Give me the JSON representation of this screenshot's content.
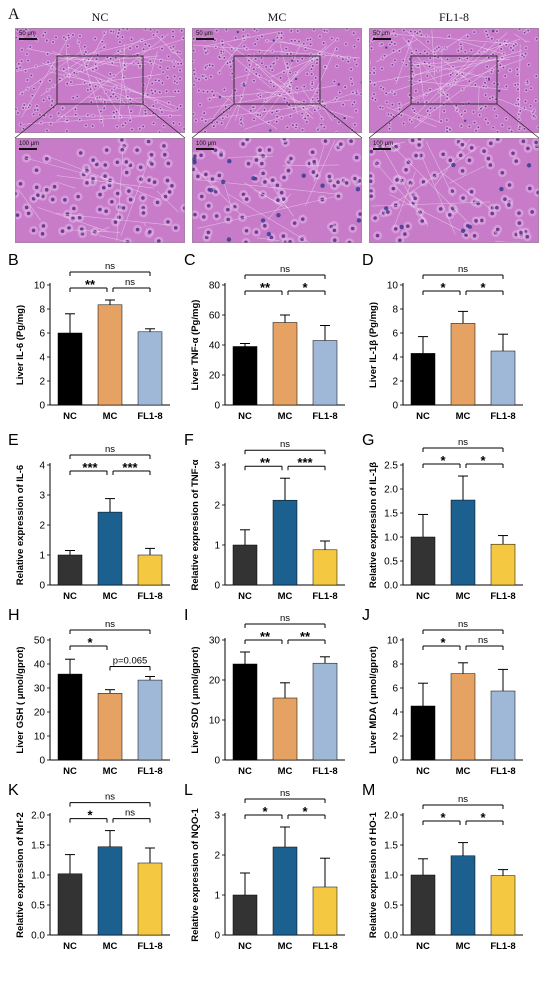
{
  "he_panel": {
    "letter": "A",
    "groups": [
      "NC",
      "MC",
      "FL1-8"
    ],
    "scale_low": "50 μm",
    "scale_high": "100 μm",
    "tissue_color": "#c77bc9",
    "nucleus_color": "#5a2a8a"
  },
  "chart_data": [
    {
      "id": "B",
      "type": "bar",
      "ylabel": "Liver IL-6 (Pg/mg)",
      "categories": [
        "NC",
        "MC",
        "FL1-8"
      ],
      "values": [
        6.0,
        8.35,
        6.1
      ],
      "errors": [
        1.6,
        0.4,
        0.25
      ],
      "ylim": [
        0,
        10
      ],
      "yticks": [
        0,
        2,
        4,
        6,
        8,
        10
      ],
      "colors": [
        "#000000",
        "#e6a263",
        "#9fb8d8"
      ],
      "brackets": [
        {
          "from": 0,
          "to": 1,
          "label": "**",
          "level": 1
        },
        {
          "from": 1,
          "to": 2,
          "label": "ns",
          "level": 1
        },
        {
          "from": 0,
          "to": 2,
          "label": "ns",
          "level": 2
        }
      ]
    },
    {
      "id": "C",
      "type": "bar",
      "ylabel": "Liver TNF-α (Pg/mg)",
      "categories": [
        "NC",
        "MC",
        "FL1-8"
      ],
      "values": [
        39,
        55,
        43
      ],
      "errors": [
        2,
        5,
        10
      ],
      "ylim": [
        0,
        80
      ],
      "yticks": [
        0,
        20,
        40,
        60,
        80
      ],
      "colors": [
        "#000000",
        "#e6a263",
        "#9fb8d8"
      ],
      "brackets": [
        {
          "from": 0,
          "to": 1,
          "label": "**",
          "level": 1
        },
        {
          "from": 1,
          "to": 2,
          "label": "*",
          "level": 1
        },
        {
          "from": 0,
          "to": 2,
          "label": "ns",
          "level": 2
        }
      ]
    },
    {
      "id": "D",
      "type": "bar",
      "ylabel": "Liver IL-1β (Pg/mg)",
      "categories": [
        "NC",
        "MC",
        "FL1-8"
      ],
      "values": [
        4.3,
        6.8,
        4.5
      ],
      "errors": [
        1.4,
        1.0,
        1.4
      ],
      "ylim": [
        0,
        10
      ],
      "yticks": [
        0,
        2,
        4,
        6,
        8,
        10
      ],
      "colors": [
        "#000000",
        "#e6a263",
        "#9fb8d8"
      ],
      "brackets": [
        {
          "from": 0,
          "to": 1,
          "label": "*",
          "level": 1
        },
        {
          "from": 1,
          "to": 2,
          "label": "*",
          "level": 1
        },
        {
          "from": 0,
          "to": 2,
          "label": "ns",
          "level": 2
        }
      ]
    },
    {
      "id": "E",
      "type": "bar",
      "ylabel": "Relative expression of IL-6",
      "categories": [
        "NC",
        "MC",
        "FL1-8"
      ],
      "values": [
        1.0,
        2.43,
        1.0
      ],
      "errors": [
        0.15,
        0.45,
        0.22
      ],
      "ylim": [
        0,
        4
      ],
      "yticks": [
        0,
        1,
        2,
        3,
        4
      ],
      "colors": [
        "#333333",
        "#1c6090",
        "#f5c842"
      ],
      "brackets": [
        {
          "from": 0,
          "to": 1,
          "label": "***",
          "level": 1
        },
        {
          "from": 1,
          "to": 2,
          "label": "***",
          "level": 1
        },
        {
          "from": 0,
          "to": 2,
          "label": "ns",
          "level": 2
        }
      ]
    },
    {
      "id": "F",
      "type": "bar",
      "ylabel": "Relative expression of TNF-α",
      "categories": [
        "NC",
        "MC",
        "FL1-8"
      ],
      "values": [
        1.0,
        2.12,
        0.88
      ],
      "errors": [
        0.38,
        0.55,
        0.22
      ],
      "ylim": [
        0,
        3
      ],
      "yticks": [
        0,
        1,
        2,
        3
      ],
      "colors": [
        "#333333",
        "#1c6090",
        "#f5c842"
      ],
      "brackets": [
        {
          "from": 0,
          "to": 1,
          "label": "**",
          "level": 1
        },
        {
          "from": 1,
          "to": 2,
          "label": "***",
          "level": 1
        },
        {
          "from": 0,
          "to": 2,
          "label": "ns",
          "level": 2
        }
      ]
    },
    {
      "id": "G",
      "type": "bar",
      "ylabel": "Relative expression of IL-1β",
      "categories": [
        "NC",
        "MC",
        "FL1-8"
      ],
      "values": [
        1.0,
        1.77,
        0.85
      ],
      "errors": [
        0.47,
        0.5,
        0.18
      ],
      "ylim": [
        0,
        2.5
      ],
      "yticks": [
        0,
        0.5,
        1.0,
        1.5,
        2.0,
        2.5
      ],
      "decimals": 1,
      "colors": [
        "#333333",
        "#1c6090",
        "#f5c842"
      ],
      "brackets": [
        {
          "from": 0,
          "to": 1,
          "label": "*",
          "level": 1
        },
        {
          "from": 1,
          "to": 2,
          "label": "*",
          "level": 1
        },
        {
          "from": 0,
          "to": 2,
          "label": "ns",
          "level": 2
        }
      ]
    },
    {
      "id": "H",
      "type": "bar",
      "ylabel": "Liver GSH ( μmol/gprot)",
      "categories": [
        "NC",
        "MC",
        "FL1-8"
      ],
      "values": [
        35.8,
        27.8,
        33.3
      ],
      "errors": [
        6.2,
        1.5,
        1.5
      ],
      "ylim": [
        0,
        50
      ],
      "yticks": [
        0,
        10,
        20,
        30,
        40,
        50
      ],
      "colors": [
        "#000000",
        "#e6a263",
        "#9fb8d8"
      ],
      "brackets": [
        {
          "from": 0,
          "to": 1,
          "label": "*",
          "level": 1
        },
        {
          "from": 1,
          "to": 2,
          "label": "p=0.065",
          "level": 0
        },
        {
          "from": 0,
          "to": 2,
          "label": "ns",
          "level": 2
        }
      ]
    },
    {
      "id": "I",
      "type": "bar",
      "ylabel": "Liver SOD ( μmol/gprot)",
      "categories": [
        "NC",
        "MC",
        "FL1-8"
      ],
      "values": [
        24,
        15.5,
        24.2
      ],
      "errors": [
        3,
        3.8,
        1.6
      ],
      "ylim": [
        0,
        30
      ],
      "yticks": [
        0,
        10,
        20,
        30
      ],
      "colors": [
        "#000000",
        "#e6a263",
        "#9fb8d8"
      ],
      "brackets": [
        {
          "from": 0,
          "to": 1,
          "label": "**",
          "level": 1
        },
        {
          "from": 1,
          "to": 2,
          "label": "**",
          "level": 1
        },
        {
          "from": 0,
          "to": 2,
          "label": "ns",
          "level": 2
        }
      ]
    },
    {
      "id": "J",
      "type": "bar",
      "ylabel": "Liver MDA ( μmol/gprot)",
      "categories": [
        "NC",
        "MC",
        "FL1-8"
      ],
      "values": [
        4.5,
        7.2,
        5.75
      ],
      "errors": [
        1.9,
        0.9,
        1.8
      ],
      "ylim": [
        0,
        10
      ],
      "yticks": [
        0,
        2,
        4,
        6,
        8,
        10
      ],
      "colors": [
        "#000000",
        "#e6a263",
        "#9fb8d8"
      ],
      "brackets": [
        {
          "from": 0,
          "to": 1,
          "label": "*",
          "level": 1
        },
        {
          "from": 1,
          "to": 2,
          "label": "ns",
          "level": 1
        },
        {
          "from": 0,
          "to": 2,
          "label": "ns",
          "level": 2
        }
      ]
    },
    {
      "id": "K",
      "type": "bar",
      "ylabel": "Relative expression of Nrf-2",
      "categories": [
        "NC",
        "MC",
        "FL1-8"
      ],
      "values": [
        1.02,
        1.47,
        1.2
      ],
      "errors": [
        0.32,
        0.27,
        0.25
      ],
      "ylim": [
        0,
        2.0
      ],
      "yticks": [
        0,
        0.5,
        1.0,
        1.5,
        2.0
      ],
      "decimals": 1,
      "colors": [
        "#333333",
        "#1c6090",
        "#f5c842"
      ],
      "brackets": [
        {
          "from": 0,
          "to": 1,
          "label": "*",
          "level": 1
        },
        {
          "from": 1,
          "to": 2,
          "label": "ns",
          "level": 1
        },
        {
          "from": 0,
          "to": 2,
          "label": "ns",
          "level": 2
        }
      ]
    },
    {
      "id": "L",
      "type": "bar",
      "ylabel": "Relative expression of NQO-1",
      "categories": [
        "NC",
        "MC",
        "FL1-8"
      ],
      "values": [
        1.0,
        2.2,
        1.2
      ],
      "errors": [
        0.55,
        0.5,
        0.72
      ],
      "ylim": [
        0,
        3
      ],
      "yticks": [
        0,
        1,
        2,
        3
      ],
      "colors": [
        "#333333",
        "#1c6090",
        "#f5c842"
      ],
      "brackets": [
        {
          "from": 0,
          "to": 1,
          "label": "*",
          "level": 1
        },
        {
          "from": 1,
          "to": 2,
          "label": "*",
          "level": 1
        },
        {
          "from": 0,
          "to": 2,
          "label": "ns",
          "level": 2
        }
      ]
    },
    {
      "id": "M",
      "type": "bar",
      "ylabel": "Relative expression of HO-1",
      "categories": [
        "NC",
        "MC",
        "FL1-8"
      ],
      "values": [
        1.0,
        1.32,
        0.99
      ],
      "errors": [
        0.27,
        0.22,
        0.1
      ],
      "ylim": [
        0,
        2.0
      ],
      "yticks": [
        0,
        0.5,
        1.0,
        1.5,
        2.0
      ],
      "decimals": 1,
      "colors": [
        "#333333",
        "#1c6090",
        "#f5c842"
      ],
      "brackets": [
        {
          "from": 0,
          "to": 1,
          "label": "*",
          "level": 1
        },
        {
          "from": 1,
          "to": 2,
          "label": "*",
          "level": 1
        },
        {
          "from": 0,
          "to": 2,
          "label": "ns",
          "level": 2
        }
      ]
    }
  ]
}
